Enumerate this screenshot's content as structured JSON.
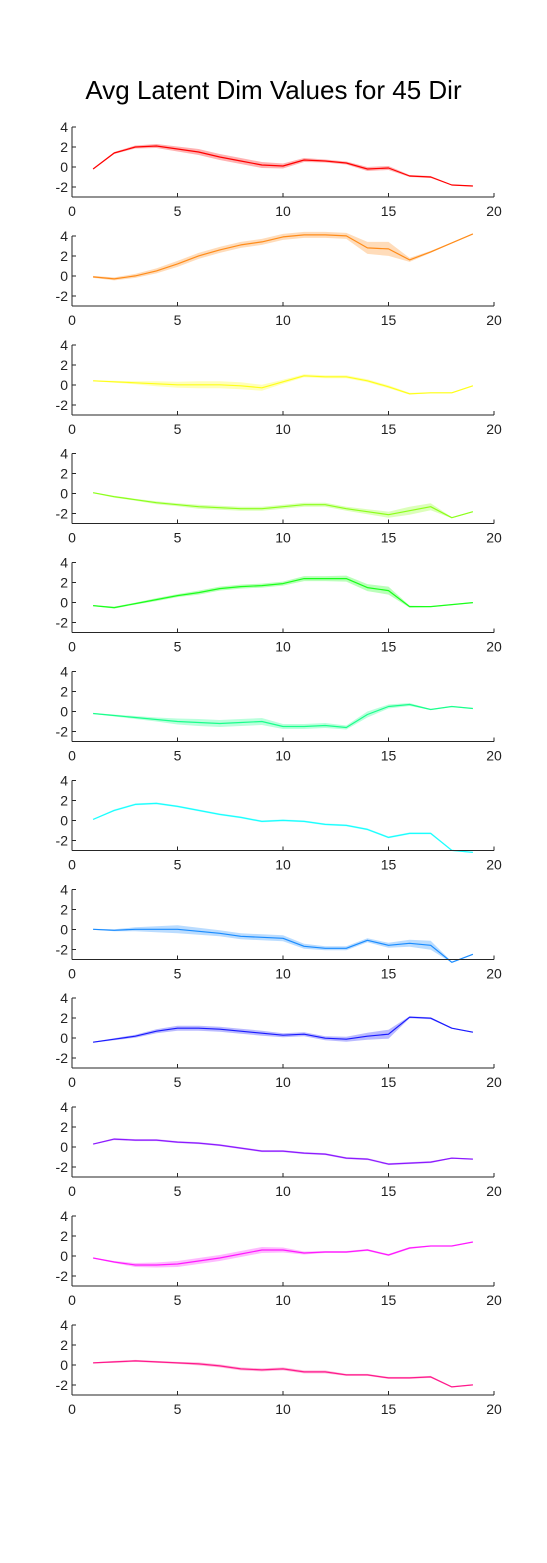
{
  "title": "Avg Latent Dim Values for 45 Dir",
  "chart_data": [
    {
      "type": "line",
      "color": "#ff0000",
      "x": [
        1,
        2,
        3,
        4,
        5,
        6,
        7,
        8,
        9,
        10,
        11,
        12,
        13,
        14,
        15,
        16,
        17,
        18,
        19
      ],
      "values": [
        -0.2,
        1.4,
        2.0,
        2.1,
        1.8,
        1.5,
        1.0,
        0.6,
        0.2,
        0.1,
        0.7,
        0.6,
        0.4,
        -0.2,
        -0.1,
        -0.9,
        -1.0,
        -1.8,
        -1.9
      ],
      "band": [
        0.05,
        0.1,
        0.15,
        0.2,
        0.25,
        0.3,
        0.3,
        0.3,
        0.3,
        0.25,
        0.2,
        0.15,
        0.15,
        0.2,
        0.2,
        0.1,
        0.1,
        0.05,
        0.05
      ],
      "xlim": [
        0,
        20
      ],
      "ylim": [
        -3,
        4
      ],
      "xticks": [
        0,
        5,
        10,
        15,
        20
      ],
      "yticks": [
        4,
        2,
        0,
        -2
      ]
    },
    {
      "type": "line",
      "color": "#ff8c1a",
      "x": [
        1,
        2,
        3,
        4,
        5,
        6,
        7,
        8,
        9,
        10,
        11,
        12,
        13,
        14,
        15,
        16,
        17,
        18,
        19
      ],
      "values": [
        -0.1,
        -0.3,
        0.0,
        0.5,
        1.2,
        2.0,
        2.6,
        3.1,
        3.4,
        3.9,
        4.1,
        4.1,
        4.0,
        2.8,
        2.7,
        1.6,
        2.4,
        3.3,
        4.2
      ],
      "band": [
        0.1,
        0.15,
        0.2,
        0.25,
        0.3,
        0.3,
        0.3,
        0.3,
        0.3,
        0.3,
        0.3,
        0.3,
        0.3,
        0.6,
        0.7,
        0.2,
        0.1,
        0.05,
        0.05
      ],
      "xlim": [
        0,
        20
      ],
      "ylim": [
        -3,
        4
      ],
      "xticks": [
        0,
        5,
        10,
        15,
        20
      ],
      "yticks": [
        4,
        2,
        0,
        -2
      ]
    },
    {
      "type": "line",
      "color": "#ffff1a",
      "x": [
        1,
        2,
        3,
        4,
        5,
        6,
        7,
        8,
        9,
        10,
        11,
        12,
        13,
        14,
        15,
        16,
        17,
        18,
        19
      ],
      "values": [
        0.4,
        0.3,
        0.2,
        0.1,
        0.0,
        0.0,
        0.0,
        -0.1,
        -0.3,
        0.3,
        0.9,
        0.8,
        0.8,
        0.4,
        -0.2,
        -0.9,
        -0.8,
        -0.8,
        -0.1
      ],
      "band": [
        0.05,
        0.1,
        0.15,
        0.25,
        0.3,
        0.35,
        0.35,
        0.35,
        0.3,
        0.2,
        0.15,
        0.15,
        0.15,
        0.15,
        0.15,
        0.1,
        0.05,
        0.05,
        0.05
      ],
      "xlim": [
        0,
        20
      ],
      "ylim": [
        -3,
        4
      ],
      "xticks": [
        0,
        5,
        10,
        15,
        20
      ],
      "yticks": [
        4,
        2,
        0,
        -2
      ]
    },
    {
      "type": "line",
      "color": "#8cff1a",
      "x": [
        1,
        2,
        3,
        4,
        5,
        6,
        7,
        8,
        9,
        10,
        11,
        12,
        13,
        14,
        15,
        16,
        17,
        18,
        19
      ],
      "values": [
        0.1,
        -0.3,
        -0.6,
        -0.9,
        -1.1,
        -1.3,
        -1.4,
        -1.5,
        -1.5,
        -1.3,
        -1.1,
        -1.1,
        -1.5,
        -1.8,
        -2.1,
        -1.7,
        -1.3,
        -2.4,
        -1.8
      ],
      "band": [
        0.05,
        0.1,
        0.1,
        0.15,
        0.15,
        0.2,
        0.2,
        0.2,
        0.2,
        0.2,
        0.2,
        0.2,
        0.2,
        0.25,
        0.3,
        0.4,
        0.35,
        0.05,
        0.05
      ],
      "xlim": [
        0,
        20
      ],
      "ylim": [
        -3,
        4
      ],
      "xticks": [
        0,
        5,
        10,
        15,
        20
      ],
      "yticks": [
        4,
        2,
        0,
        -2
      ]
    },
    {
      "type": "line",
      "color": "#1aff1a",
      "x": [
        1,
        2,
        3,
        4,
        5,
        6,
        7,
        8,
        9,
        10,
        11,
        12,
        13,
        14,
        15,
        16,
        17,
        18,
        19
      ],
      "values": [
        -0.3,
        -0.5,
        -0.1,
        0.3,
        0.7,
        1.0,
        1.4,
        1.6,
        1.7,
        1.9,
        2.4,
        2.4,
        2.4,
        1.5,
        1.2,
        -0.4,
        -0.4,
        -0.2,
        0.0
      ],
      "band": [
        0.05,
        0.1,
        0.1,
        0.15,
        0.15,
        0.2,
        0.2,
        0.2,
        0.2,
        0.2,
        0.25,
        0.25,
        0.3,
        0.35,
        0.4,
        0.1,
        0.05,
        0.05,
        0.05
      ],
      "xlim": [
        0,
        20
      ],
      "ylim": [
        -3,
        4
      ],
      "xticks": [
        0,
        5,
        10,
        15,
        20
      ],
      "yticks": [
        4,
        2,
        0,
        -2
      ]
    },
    {
      "type": "line",
      "color": "#1aff8c",
      "x": [
        1,
        2,
        3,
        4,
        5,
        6,
        7,
        8,
        9,
        10,
        11,
        12,
        13,
        14,
        15,
        16,
        17,
        18,
        19
      ],
      "values": [
        -0.2,
        -0.4,
        -0.6,
        -0.8,
        -1.0,
        -1.1,
        -1.2,
        -1.1,
        -1.0,
        -1.5,
        -1.5,
        -1.4,
        -1.6,
        -0.3,
        0.5,
        0.7,
        0.2,
        0.5,
        0.3
      ],
      "band": [
        0.05,
        0.1,
        0.15,
        0.2,
        0.3,
        0.35,
        0.35,
        0.35,
        0.35,
        0.25,
        0.25,
        0.25,
        0.2,
        0.3,
        0.2,
        0.15,
        0.05,
        0.05,
        0.05
      ],
      "xlim": [
        0,
        20
      ],
      "ylim": [
        -3,
        4
      ],
      "xticks": [
        0,
        5,
        10,
        15,
        20
      ],
      "yticks": [
        4,
        2,
        0,
        -2
      ]
    },
    {
      "type": "line",
      "color": "#1affff",
      "x": [
        1,
        2,
        3,
        4,
        5,
        6,
        7,
        8,
        9,
        10,
        11,
        12,
        13,
        14,
        15,
        16,
        17,
        18,
        19
      ],
      "values": [
        0.1,
        1.0,
        1.6,
        1.7,
        1.4,
        1.0,
        0.6,
        0.3,
        -0.1,
        0.0,
        -0.1,
        -0.4,
        -0.5,
        -0.9,
        -1.7,
        -1.3,
        -1.3,
        -3.0,
        -3.2
      ],
      "band": [
        0.05,
        0.1,
        0.1,
        0.1,
        0.1,
        0.1,
        0.1,
        0.1,
        0.1,
        0.1,
        0.1,
        0.1,
        0.1,
        0.1,
        0.1,
        0.1,
        0.1,
        0.05,
        0.05
      ],
      "xlim": [
        0,
        20
      ],
      "ylim": [
        -3,
        4
      ],
      "xticks": [
        0,
        5,
        10,
        15,
        20
      ],
      "yticks": [
        4,
        2,
        0,
        -2
      ]
    },
    {
      "type": "line",
      "color": "#1a8cff",
      "x": [
        1,
        2,
        3,
        4,
        5,
        6,
        7,
        8,
        9,
        10,
        11,
        12,
        13,
        14,
        15,
        16,
        17,
        18,
        19
      ],
      "values": [
        0.0,
        -0.1,
        0.0,
        0.0,
        0.0,
        -0.2,
        -0.4,
        -0.7,
        -0.8,
        -0.9,
        -1.7,
        -1.9,
        -1.9,
        -1.1,
        -1.6,
        -1.4,
        -1.6,
        -3.3,
        -2.5
      ],
      "band": [
        0.05,
        0.1,
        0.2,
        0.3,
        0.4,
        0.35,
        0.3,
        0.3,
        0.3,
        0.3,
        0.25,
        0.2,
        0.2,
        0.2,
        0.25,
        0.35,
        0.45,
        0.05,
        0.05
      ],
      "xlim": [
        0,
        20
      ],
      "ylim": [
        -3,
        4
      ],
      "xticks": [
        0,
        5,
        10,
        15,
        20
      ],
      "yticks": [
        4,
        2,
        0,
        -2
      ]
    },
    {
      "type": "line",
      "color": "#1a1aff",
      "x": [
        1,
        2,
        3,
        4,
        5,
        6,
        7,
        8,
        9,
        10,
        11,
        12,
        13,
        14,
        15,
        16,
        17,
        18,
        19
      ],
      "values": [
        -0.4,
        -0.1,
        0.2,
        0.7,
        1.0,
        1.0,
        0.9,
        0.7,
        0.5,
        0.3,
        0.4,
        0.0,
        -0.1,
        0.2,
        0.4,
        2.1,
        2.0,
        1.0,
        0.6
      ],
      "band": [
        0.05,
        0.1,
        0.15,
        0.2,
        0.25,
        0.25,
        0.25,
        0.25,
        0.25,
        0.2,
        0.2,
        0.2,
        0.25,
        0.35,
        0.45,
        0.1,
        0.1,
        0.05,
        0.05
      ],
      "xlim": [
        0,
        20
      ],
      "ylim": [
        -3,
        4
      ],
      "xticks": [
        0,
        5,
        10,
        15,
        20
      ],
      "yticks": [
        4,
        2,
        0,
        -2
      ]
    },
    {
      "type": "line",
      "color": "#8c1aff",
      "x": [
        1,
        2,
        3,
        4,
        5,
        6,
        7,
        8,
        9,
        10,
        11,
        12,
        13,
        14,
        15,
        16,
        17,
        18,
        19
      ],
      "values": [
        0.3,
        0.8,
        0.7,
        0.7,
        0.5,
        0.4,
        0.2,
        -0.1,
        -0.4,
        -0.4,
        -0.6,
        -0.7,
        -1.1,
        -1.2,
        -1.7,
        -1.6,
        -1.5,
        -1.1,
        -1.2
      ],
      "band": [
        0.05,
        0.1,
        0.1,
        0.1,
        0.1,
        0.1,
        0.1,
        0.1,
        0.1,
        0.1,
        0.1,
        0.1,
        0.1,
        0.1,
        0.1,
        0.1,
        0.1,
        0.05,
        0.05
      ],
      "xlim": [
        0,
        20
      ],
      "ylim": [
        -3,
        4
      ],
      "xticks": [
        0,
        5,
        10,
        15,
        20
      ],
      "yticks": [
        4,
        2,
        0,
        -2
      ]
    },
    {
      "type": "line",
      "color": "#ff1aff",
      "x": [
        1,
        2,
        3,
        4,
        5,
        6,
        7,
        8,
        9,
        10,
        11,
        12,
        13,
        14,
        15,
        16,
        17,
        18,
        19
      ],
      "values": [
        -0.2,
        -0.6,
        -0.9,
        -0.9,
        -0.8,
        -0.5,
        -0.2,
        0.2,
        0.6,
        0.6,
        0.3,
        0.4,
        0.4,
        0.6,
        0.1,
        0.8,
        1.0,
        1.0,
        1.4
      ],
      "band": [
        0.05,
        0.1,
        0.2,
        0.25,
        0.3,
        0.3,
        0.3,
        0.3,
        0.3,
        0.25,
        0.15,
        0.1,
        0.1,
        0.1,
        0.1,
        0.1,
        0.05,
        0.05,
        0.05
      ],
      "xlim": [
        0,
        20
      ],
      "ylim": [
        -3,
        4
      ],
      "xticks": [
        0,
        5,
        10,
        15,
        20
      ],
      "yticks": [
        4,
        2,
        0,
        -2
      ]
    },
    {
      "type": "line",
      "color": "#ff1a8c",
      "x": [
        1,
        2,
        3,
        4,
        5,
        6,
        7,
        8,
        9,
        10,
        11,
        12,
        13,
        14,
        15,
        16,
        17,
        18,
        19
      ],
      "values": [
        0.2,
        0.3,
        0.4,
        0.3,
        0.2,
        0.1,
        -0.1,
        -0.4,
        -0.5,
        -0.4,
        -0.7,
        -0.7,
        -1.0,
        -1.0,
        -1.3,
        -1.3,
        -1.2,
        -2.2,
        -2.0
      ],
      "band": [
        0.05,
        0.1,
        0.1,
        0.1,
        0.1,
        0.15,
        0.15,
        0.15,
        0.15,
        0.15,
        0.15,
        0.15,
        0.1,
        0.1,
        0.1,
        0.1,
        0.1,
        0.05,
        0.05
      ],
      "xlim": [
        0,
        20
      ],
      "ylim": [
        -3,
        4
      ],
      "xticks": [
        0,
        5,
        10,
        15,
        20
      ],
      "yticks": [
        4,
        2,
        0,
        -2
      ]
    }
  ]
}
